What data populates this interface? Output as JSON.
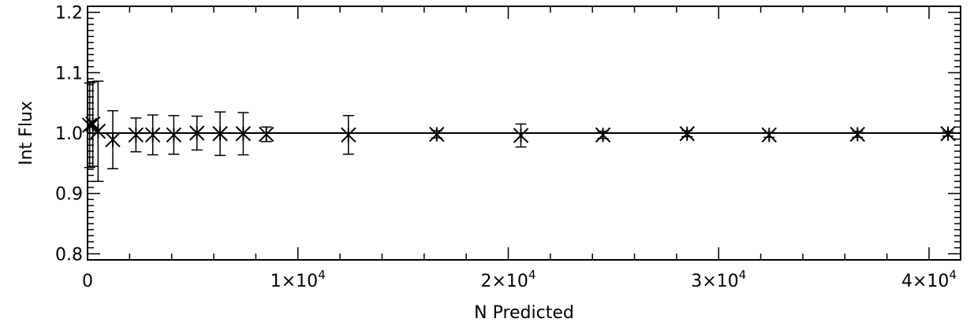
{
  "chart_data": {
    "type": "scatter",
    "title": "",
    "xlabel": "N Predicted",
    "ylabel": "Int Flux",
    "xlim": [
      0,
      41500
    ],
    "ylim": [
      0.79,
      1.21
    ],
    "x_major_ticks": [
      0,
      10000,
      20000,
      30000,
      40000
    ],
    "x_tick_labels": [
      {
        "mant": "0",
        "exp": ""
      },
      {
        "mant": "1×10",
        "exp": "4"
      },
      {
        "mant": "2×10",
        "exp": "4"
      },
      {
        "mant": "3×10",
        "exp": "4"
      },
      {
        "mant": "4×10",
        "exp": "4"
      }
    ],
    "y_major_ticks": [
      0.8,
      0.9,
      1.0,
      1.1,
      1.2
    ],
    "y_tick_labels": [
      "0.8",
      "0.9",
      "1.0",
      "1.1",
      "1.2"
    ],
    "reference_line": 1.0,
    "grid": false,
    "marker": "asterisk",
    "points": [
      {
        "x": 100,
        "y": 1.013,
        "err": 0.07
      },
      {
        "x": 250,
        "y": 1.015,
        "err": 0.07
      },
      {
        "x": 500,
        "y": 1.003,
        "err": 0.083
      },
      {
        "x": 1200,
        "y": 0.989,
        "err": 0.048
      },
      {
        "x": 2300,
        "y": 0.997,
        "err": 0.028
      },
      {
        "x": 3100,
        "y": 0.997,
        "err": 0.033
      },
      {
        "x": 4100,
        "y": 0.997,
        "err": 0.032
      },
      {
        "x": 5200,
        "y": 1.0,
        "err": 0.028
      },
      {
        "x": 6300,
        "y": 0.999,
        "err": 0.036
      },
      {
        "x": 7400,
        "y": 0.999,
        "err": 0.035
      },
      {
        "x": 8500,
        "y": 0.998,
        "err": 0.012
      },
      {
        "x": 12400,
        "y": 0.997,
        "err": 0.032
      },
      {
        "x": 16600,
        "y": 0.998,
        "err": 0.006
      },
      {
        "x": 20600,
        "y": 0.996,
        "err": 0.019
      },
      {
        "x": 24500,
        "y": 0.997,
        "err": 0.006
      },
      {
        "x": 28500,
        "y": 0.999,
        "err": 0.005
      },
      {
        "x": 32400,
        "y": 0.997,
        "err": 0.004
      },
      {
        "x": 36600,
        "y": 0.998,
        "err": 0.005
      },
      {
        "x": 40900,
        "y": 0.999,
        "err": 0.004
      }
    ]
  }
}
